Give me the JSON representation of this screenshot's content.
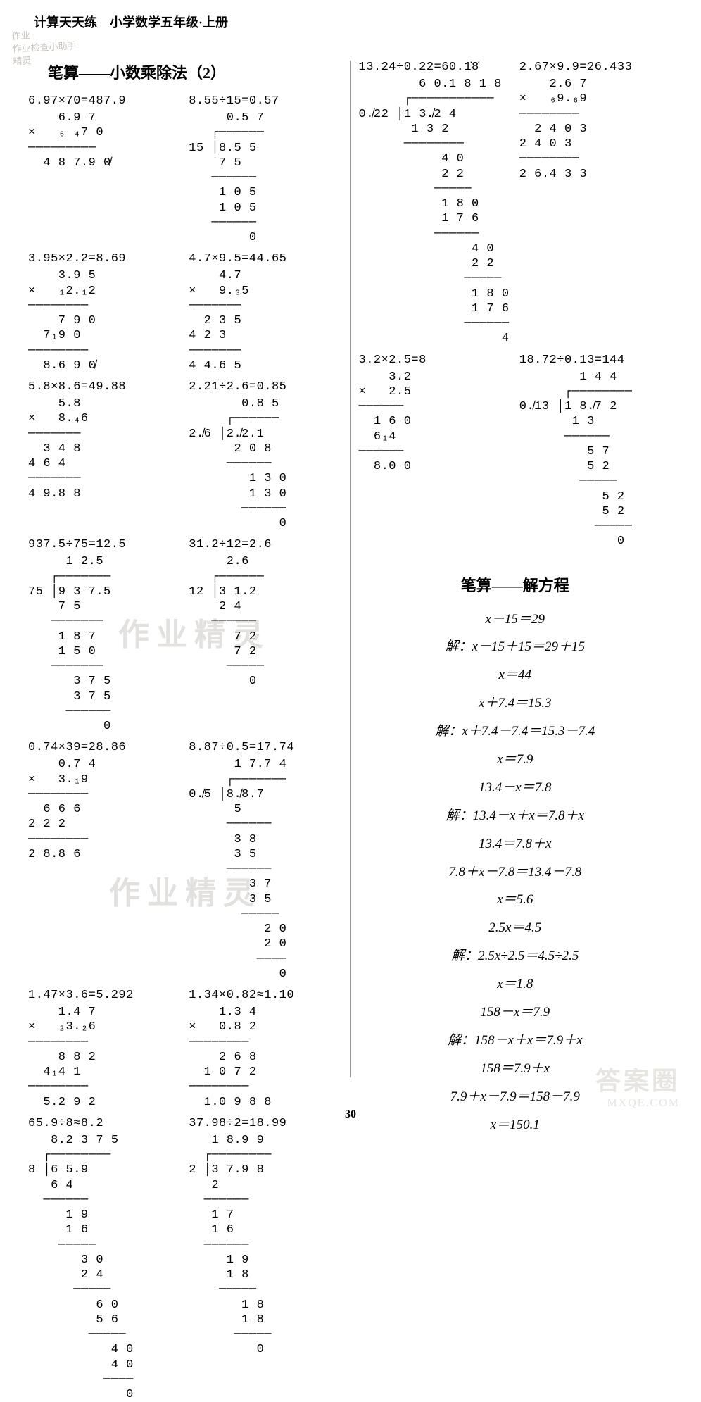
{
  "header": "计算天天练　小学数学五年级·上册",
  "stamp_lines": [
    "作业",
    "作业检查小助手",
    "精灵"
  ],
  "page_number": "30",
  "footer_logo": {
    "line1": "答案圈",
    "line2": "MXQE.COM"
  },
  "watermark_text": "作业精灵",
  "section_left_title": "笔算——小数乘除法（2）",
  "section_right_title": "笔算——解方程",
  "equations": {
    "p1a": "6.97×70=487.9",
    "p1b": "8.55÷15=0.57",
    "p2a": "3.95×2.2=8.69",
    "p2b": "4.7×9.5=44.65",
    "p3a": "5.8×8.6=49.88",
    "p3b": "2.21÷2.6=0.85",
    "p4a": "937.5÷75=12.5",
    "p4b": "31.2÷12=2.6",
    "p5a": "0.74×39=28.86",
    "p5b": "8.87÷0.5=17.74",
    "p6a": "1.47×3.6=5.292",
    "p6b": "1.34×0.82≈1.10",
    "p7a": "65.9÷8≈8.2",
    "p7b": "37.98÷2=18.99",
    "r1a": "13.24÷0.22=60.1̇8̇",
    "r1b": "2.67×9.9=26.433",
    "r2a": "3.2×2.5=8",
    "r2b": "18.72÷0.13=144"
  },
  "work": {
    "p1a": "    6.9 7\n×   ₆ ₄7 0\n─────────\n  4 8 7.9 0̸",
    "p1b": "     0.5 7\n   ┌──────\n15 │8.5 5\n    7 5\n   ──────\n    1 0 5\n    1 0 5\n   ──────\n        0",
    "p2a": "    3.9 5\n×   ₁2.₁2\n────────\n    7 9 0\n  7₁9 0\n────────\n  8.6 9 0̸",
    "p2b": "    4.7\n×   9.₃5\n───────\n  2 3 5\n4 2 3\n───────\n4 4.6 5",
    "p3a": "    5.8\n×   8.₄6\n───────\n  3 4 8\n4 6 4\n───────\n4 9.8 8",
    "p3b": "       0.8 5\n     ┌──────\n2.̸6 │2.̸2.1\n      2 0 8\n     ──────\n        1 3 0\n        1 3 0\n       ──────\n            0",
    "p4a": "     1 2.5\n   ┌───────\n75 │9 3 7.5\n    7 5\n   ───────\n    1 8 7\n    1 5 0\n   ───────\n      3 7 5\n      3 7 5\n     ──────\n          0",
    "p4b": "     2.6\n   ┌──────\n12 │3 1.2\n    2 4\n   ──────\n      7 2\n      7 2\n     ─────\n        0",
    "p5a": "    0.7 4\n×   3.₁9\n────────\n  6 6 6\n2 2 2\n────────\n2 8.8 6",
    "p5b": "      1 7.7 4\n     ┌───────\n0.̸5 │8.̸8.7\n      5\n     ──────\n      3 8\n      3 5\n     ──────\n        3 7\n        3 5\n       ─────\n          2 0\n          2 0\n         ────\n            0",
    "p6a": "    1.4 7\n×   ₂3.₂6\n────────\n    8 8 2\n  4₁4 1\n────────\n  5.2 9 2",
    "p6b": "    1.3 4\n×   0.8 2\n────────\n    2 6 8\n  1 0 7 2\n────────\n  1.0 9 8 8",
    "p7a": "   8.2 3 7 5\n  ┌────────\n8 │6 5.9\n   6 4\n  ──────\n     1 9\n     1 6\n    ─────\n       3 0\n       2 4\n      ─────\n         6 0\n         5 6\n        ─────\n           4 0\n           4 0\n          ────\n             0",
    "p7b": "   1 8.9 9\n  ┌────────\n2 │3 7.9 8\n   2\n  ──────\n   1 7\n   1 6\n  ──────\n     1 9\n     1 8\n    ─────\n       1 8\n       1 8\n      ─────\n         0",
    "r1a": "        6 0.1 8 1 8\n      ┌───────────\n0.̸22 │1 3.̸2 4\n       1 3 2\n      ────────\n           4 0\n           2 2\n          ─────\n           1 8 0\n           1 7 6\n          ──────\n               4 0\n               2 2\n              ─────\n               1 8 0\n               1 7 6\n              ──────\n                   4",
    "r1b": "    2.6 7\n×   ₆9.₆9\n────────\n  2 4 0 3\n2 4 0 3\n────────\n2 6.4 3 3",
    "r2a": "    3.2\n×   2.5\n──────\n  1 6 0\n  6₁4\n──────\n  8.0 0",
    "r2b": "        1 4 4\n      ┌────────\n0.̸13 │1 8.̸7 2\n       1 3\n      ──────\n         5 7\n         5 2\n        ─────\n           5 2\n           5 2\n          ─────\n             0"
  },
  "algebra": [
    "x－15＝29",
    "解：x－15＋15＝29＋15",
    "x＝44",
    "x＋7.4＝15.3",
    "解：x＋7.4－7.4＝15.3－7.4",
    "x＝7.9",
    "13.4－x＝7.8",
    "解：13.4－x＋x＝7.8＋x",
    "13.4＝7.8＋x",
    "7.8＋x－7.8＝13.4－7.8",
    "x＝5.6",
    "2.5x＝4.5",
    "解：2.5x÷2.5＝4.5÷2.5",
    "x＝1.8",
    "158－x＝7.9",
    "解：158－x＋x＝7.9＋x",
    "158＝7.9＋x",
    "7.9＋x－7.9＝158－7.9",
    "x＝150.1"
  ]
}
